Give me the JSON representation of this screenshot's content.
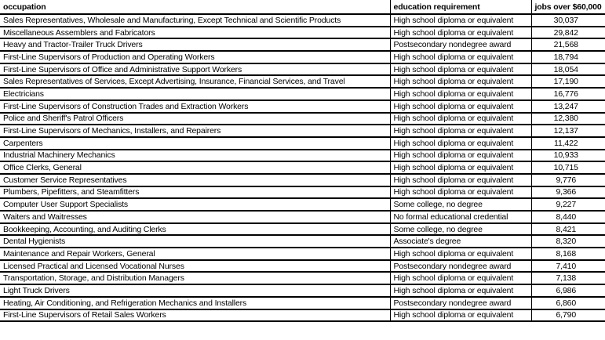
{
  "chart_data": {
    "type": "table",
    "title": "",
    "columns": [
      "occupation",
      "education requirement",
      "jobs over $60,000"
    ],
    "rows": [
      [
        "Sales Representatives, Wholesale and Manufacturing, Except Technical and Scientific Products",
        "High school diploma or equivalent",
        "30,037"
      ],
      [
        "Miscellaneous Assemblers and Fabricators",
        "High school diploma or equivalent",
        "29,842"
      ],
      [
        "Heavy and Tractor-Trailer Truck Drivers",
        "Postsecondary nondegree award",
        "21,568"
      ],
      [
        "First-Line Supervisors of Production and Operating Workers",
        "High school diploma or equivalent",
        "18,794"
      ],
      [
        "First-Line Supervisors of Office and Administrative Support Workers",
        "High school diploma or equivalent",
        "18,054"
      ],
      [
        "Sales Representatives of Services, Except Advertising, Insurance, Financial Services, and Travel",
        "High school diploma or equivalent",
        "17,190"
      ],
      [
        "Electricians",
        "High school diploma or equivalent",
        "16,776"
      ],
      [
        "First-Line Supervisors of Construction Trades and Extraction Workers",
        "High school diploma or equivalent",
        "13,247"
      ],
      [
        "Police and Sheriff's Patrol Officers",
        "High school diploma or equivalent",
        "12,380"
      ],
      [
        "First-Line Supervisors of Mechanics, Installers, and Repairers",
        "High school diploma or equivalent",
        "12,137"
      ],
      [
        "Carpenters",
        "High school diploma or equivalent",
        "11,422"
      ],
      [
        "Industrial Machinery Mechanics",
        "High school diploma or equivalent",
        "10,933"
      ],
      [
        "Office Clerks, General",
        "High school diploma or equivalent",
        "10,715"
      ],
      [
        "Customer Service Representatives",
        "High school diploma or equivalent",
        "9,776"
      ],
      [
        "Plumbers, Pipefitters, and Steamfitters",
        "High school diploma or equivalent",
        "9,366"
      ],
      [
        "Computer User Support Specialists",
        "Some college, no degree",
        "9,227"
      ],
      [
        "Waiters and Waitresses",
        "No formal educational credential",
        "8,440"
      ],
      [
        "Bookkeeping, Accounting, and Auditing Clerks",
        "Some college, no degree",
        "8,421"
      ],
      [
        "Dental Hygienists",
        "Associate's degree",
        "8,320"
      ],
      [
        "Maintenance and Repair Workers, General",
        "High school diploma or equivalent",
        "8,168"
      ],
      [
        "Licensed Practical and Licensed Vocational Nurses",
        "Postsecondary nondegree award",
        "7,410"
      ],
      [
        "Transportation, Storage, and Distribution Managers",
        "High school diploma or equivalent",
        "7,138"
      ],
      [
        "Light Truck Drivers",
        "High school diploma or equivalent",
        "6,986"
      ],
      [
        "Heating, Air Conditioning, and Refrigeration Mechanics and Installers",
        "Postsecondary nondegree award",
        "6,860"
      ],
      [
        "First-Line Supervisors of Retail Sales Workers",
        "High school diploma or equivalent",
        "6,790"
      ]
    ],
    "colors": {
      "text": "#000000",
      "border": "#000000",
      "background": "#ffffff"
    },
    "layout": {
      "header_bold": true,
      "jobs_column_alignment": "center",
      "grid": "all-borders"
    }
  }
}
